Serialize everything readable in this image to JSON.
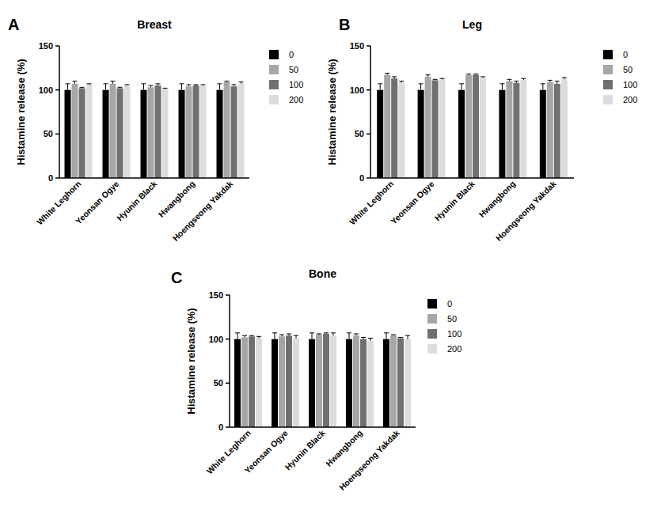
{
  "chart_data": [
    {
      "type": "bar",
      "label": "A",
      "title": "Breast",
      "y_label": "Histamine release (%)",
      "categories": [
        "White Leghorn",
        "Yeonsan Ogye",
        "Hyunin Black",
        "Hwangbong",
        "Hoengseong Yakdak"
      ],
      "ylim": [
        0,
        150
      ],
      "yticks": [
        0,
        50,
        100,
        150
      ],
      "grid": false,
      "legend": "right",
      "series": [
        {
          "name": "0",
          "color": "#000000",
          "values": [
            100,
            100,
            100,
            100,
            100
          ],
          "errors": [
            7,
            7,
            7,
            7,
            7
          ]
        },
        {
          "name": "50",
          "color": "#a6a6a6",
          "values": [
            107,
            107,
            103,
            104,
            109
          ],
          "errors": [
            3,
            3,
            2,
            2,
            1
          ]
        },
        {
          "name": "100",
          "color": "#707070",
          "values": [
            102,
            102,
            105,
            105,
            104
          ],
          "errors": [
            1,
            1,
            2,
            1,
            2
          ]
        },
        {
          "name": "200",
          "color": "#dcdcdc",
          "values": [
            106,
            105,
            101,
            105,
            107
          ],
          "errors": [
            1,
            1,
            1,
            1,
            2
          ]
        }
      ]
    },
    {
      "type": "bar",
      "label": "B",
      "title": "Leg",
      "y_label": "Histamine release (%)",
      "categories": [
        "White Leghorn",
        "Yeonsan Ogye",
        "Hyunin Black",
        "Hwangbong",
        "Hoengseong Yakdak"
      ],
      "ylim": [
        0,
        150
      ],
      "yticks": [
        0,
        50,
        100,
        150
      ],
      "grid": false,
      "legend": "right",
      "series": [
        {
          "name": "0",
          "color": "#000000",
          "values": [
            100,
            100,
            100,
            100,
            100
          ],
          "errors": [
            7,
            7,
            7,
            7,
            7
          ]
        },
        {
          "name": "50",
          "color": "#a6a6a6",
          "values": [
            117,
            115,
            117,
            110,
            109
          ],
          "errors": [
            2,
            2,
            1,
            2,
            2
          ]
        },
        {
          "name": "100",
          "color": "#707070",
          "values": [
            113,
            111,
            117,
            108,
            107
          ],
          "errors": [
            2,
            1,
            1,
            2,
            3
          ]
        },
        {
          "name": "200",
          "color": "#dcdcdc",
          "values": [
            108,
            112,
            114,
            111,
            112
          ],
          "errors": [
            2,
            1,
            1,
            2,
            2
          ]
        }
      ]
    },
    {
      "type": "bar",
      "label": "C",
      "title": "Bone",
      "y_label": "Histamine release (%)",
      "categories": [
        "White Leghorn",
        "Yeonsan Ogye",
        "Hyunin Black",
        "Hwangbong",
        "Hoengseong Yakdak"
      ],
      "ylim": [
        0,
        150
      ],
      "yticks": [
        0,
        50,
        100,
        150
      ],
      "grid": false,
      "legend": "right",
      "series": [
        {
          "name": "0",
          "color": "#000000",
          "values": [
            100,
            100,
            100,
            100,
            100
          ],
          "errors": [
            7,
            7,
            7,
            7,
            7
          ]
        },
        {
          "name": "50",
          "color": "#a6a6a6",
          "values": [
            102,
            103,
            105,
            104,
            104
          ],
          "errors": [
            2,
            2,
            1,
            2,
            1
          ]
        },
        {
          "name": "100",
          "color": "#707070",
          "values": [
            103,
            104,
            106,
            100,
            101
          ],
          "errors": [
            1,
            2,
            1,
            2,
            1
          ]
        },
        {
          "name": "200",
          "color": "#dcdcdc",
          "values": [
            101,
            101,
            104,
            98,
            100
          ],
          "errors": [
            2,
            3,
            3,
            3,
            4
          ]
        }
      ]
    }
  ]
}
